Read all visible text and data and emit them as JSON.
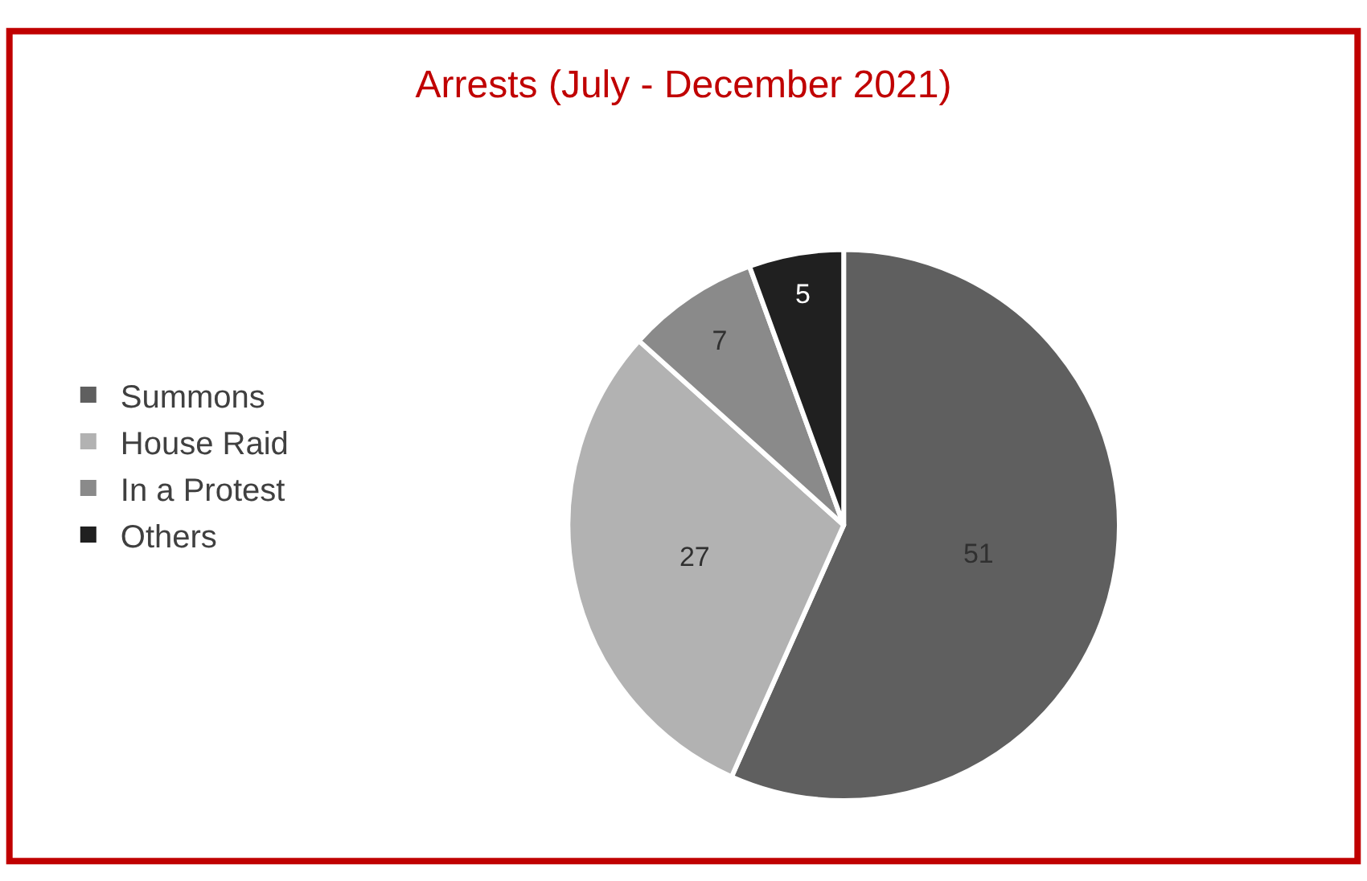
{
  "chart_data": {
    "type": "pie",
    "title": "Arrests (July - December 2021)",
    "categories": [
      "Summons",
      "House Raid",
      "In a Protest",
      "Others"
    ],
    "values": [
      51,
      27,
      7,
      5
    ],
    "colors": [
      "#5f5f5f",
      "#b2b2b2",
      "#8a8a8a",
      "#202020"
    ],
    "data_labels": true,
    "legend": "left"
  }
}
